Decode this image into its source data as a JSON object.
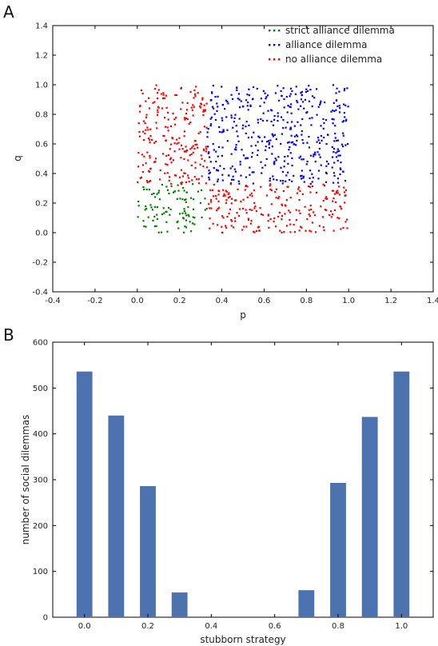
{
  "panels": [
    "A",
    "B"
  ],
  "chart_data": [
    {
      "type": "scatter",
      "panel": "A",
      "xlabel": "p",
      "ylabel": "q",
      "xlim": [
        -0.4,
        1.4
      ],
      "ylim": [
        -0.4,
        1.4
      ],
      "xticks": [
        "-0.4",
        "-0.2",
        "0.0",
        "0.2",
        "0.4",
        "0.6",
        "0.8",
        "1.0",
        "1.2",
        "1.4"
      ],
      "yticks": [
        "-0.4",
        "-0.2",
        "0.0",
        "0.2",
        "0.4",
        "0.6",
        "0.8",
        "1.0",
        "1.2",
        "1.4"
      ],
      "legend_position": "top-right",
      "series": [
        {
          "name": "strict alliance dilemma",
          "color": "#008000",
          "region": {
            "p": [
              0.0,
              0.33
            ],
            "q": [
              0.0,
              0.33
            ]
          },
          "count": 100
        },
        {
          "name": "alliance dilemma",
          "color": "#0000ff",
          "region": {
            "p": [
              0.33,
              1.0
            ],
            "q": [
              0.33,
              1.0
            ]
          },
          "count": 440
        },
        {
          "name": "no alliance dilemma",
          "color": "#ff0000",
          "regions": [
            {
              "p": [
                0.0,
                0.33
              ],
              "q": [
                0.33,
                1.0
              ]
            },
            {
              "p": [
                0.33,
                1.0
              ],
              "q": [
                0.0,
                0.33
              ]
            }
          ],
          "count": 440
        }
      ]
    },
    {
      "type": "bar",
      "panel": "B",
      "xlabel": "stubborn strategy",
      "ylabel": "number of social dilemmas",
      "xlim": [
        -0.1,
        1.1
      ],
      "ylim": [
        0,
        600
      ],
      "xticks": [
        "0.0",
        "0.2",
        "0.4",
        "0.6",
        "0.8",
        "1.0"
      ],
      "yticks": [
        "0",
        "100",
        "200",
        "300",
        "400",
        "500",
        "600"
      ],
      "color": "#4c72b0",
      "x": [
        0.0,
        0.1,
        0.2,
        0.3,
        0.4,
        0.5,
        0.6,
        0.7,
        0.8,
        0.9,
        1.0
      ],
      "values": [
        536,
        440,
        286,
        54,
        0,
        0,
        0,
        59,
        293,
        437,
        536
      ]
    }
  ]
}
